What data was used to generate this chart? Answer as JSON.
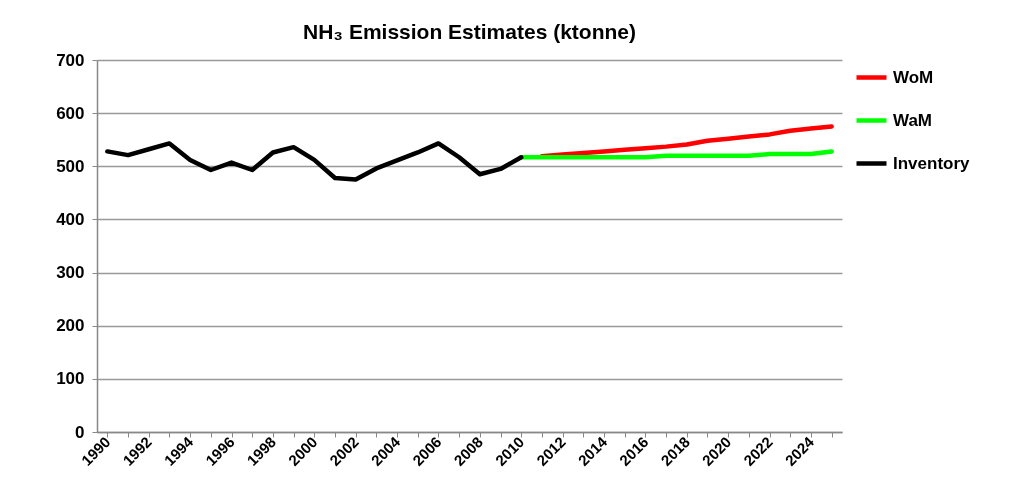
{
  "chart_data": {
    "type": "line",
    "title": "NH₃ Emission Estimates (ktonne)",
    "categories": [
      "1990",
      null,
      "1992",
      null,
      "1994",
      null,
      "1996",
      null,
      "1998",
      null,
      "2000",
      null,
      "2002",
      null,
      "2004",
      null,
      "2006",
      null,
      "2008",
      null,
      "2010",
      null,
      "2012",
      null,
      "2014",
      null,
      "2016",
      null,
      "2018",
      null,
      "2020",
      null,
      "2022",
      null,
      "2024",
      null
    ],
    "series": [
      {
        "name": "WoM",
        "color": "#ff0000",
        "values": [
          null,
          null,
          null,
          null,
          null,
          null,
          null,
          null,
          null,
          null,
          null,
          null,
          null,
          null,
          null,
          null,
          null,
          null,
          null,
          null,
          null,
          519,
          522,
          525,
          528,
          531,
          534,
          537,
          541,
          548,
          552,
          556,
          560,
          567,
          571,
          575
        ]
      },
      {
        "name": "WaM",
        "color": "#00ff00",
        "values": [
          null,
          null,
          null,
          null,
          null,
          null,
          null,
          null,
          null,
          null,
          null,
          null,
          null,
          null,
          null,
          null,
          null,
          null,
          null,
          null,
          517,
          517,
          517,
          517,
          517,
          517,
          517,
          520,
          520,
          520,
          520,
          520,
          523,
          523,
          523,
          528
        ]
      },
      {
        "name": "Inventory",
        "color": "#000000",
        "values": [
          528,
          521,
          532,
          543,
          512,
          493,
          507,
          493,
          526,
          536,
          512,
          478,
          475,
          496,
          511,
          526,
          543,
          517,
          485,
          495,
          517,
          null,
          null,
          null,
          null,
          null,
          null,
          null,
          null,
          null,
          null,
          null,
          null,
          null,
          null,
          null
        ]
      }
    ],
    "ylim": [
      0,
      700
    ],
    "yticks": [
      0,
      100,
      200,
      300,
      400,
      500,
      600,
      700
    ],
    "grid": "y",
    "legend": "right",
    "marker": "none",
    "line_style": "solid"
  }
}
